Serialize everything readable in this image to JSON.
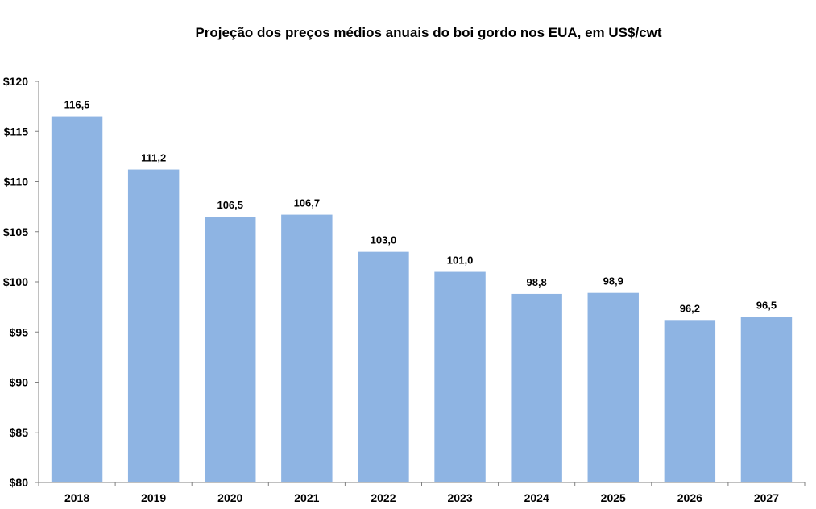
{
  "chart_data": {
    "type": "bar",
    "title": "Projeção dos preços médios anuais do boi gordo nos EUA, em US$/cwt",
    "xlabel": "",
    "ylabel": "",
    "categories": [
      "2018",
      "2019",
      "2020",
      "2021",
      "2022",
      "2023",
      "2024",
      "2025",
      "2026",
      "2027"
    ],
    "values": [
      116.5,
      111.2,
      106.5,
      106.7,
      103.0,
      101.0,
      98.8,
      98.9,
      96.2,
      96.5
    ],
    "value_labels": [
      "116,5",
      "111,2",
      "106,5",
      "106,7",
      "103,0",
      "101,0",
      "98,8",
      "98,9",
      "96,2",
      "96,5"
    ],
    "ylim": [
      80,
      120
    ],
    "y_ticks": [
      80,
      85,
      90,
      95,
      100,
      105,
      110,
      115,
      120
    ],
    "y_tick_labels": [
      "$80",
      "$85",
      "$90",
      "$95",
      "$100",
      "$105",
      "$110",
      "$115",
      "$120"
    ],
    "grid": false,
    "legend": "none",
    "colors": {
      "bar": "#8eb4e3",
      "axis": "#808080",
      "text": "#000000"
    }
  }
}
